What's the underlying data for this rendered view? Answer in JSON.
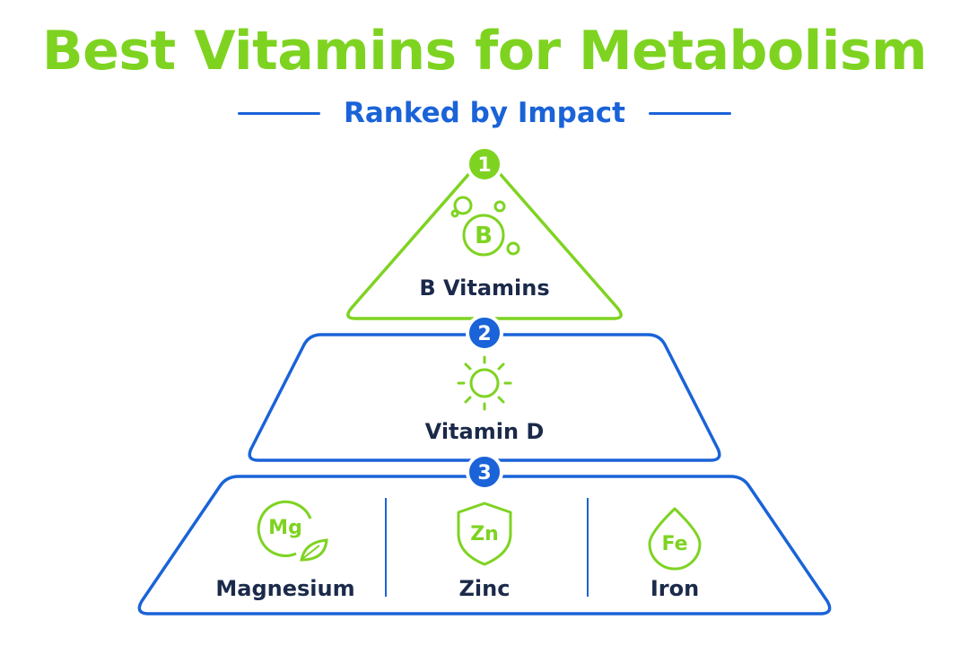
{
  "title": "Best Vitamins for Metabolism",
  "subtitle": "Ranked by Impact",
  "colors": {
    "green": "#7ed321",
    "blue": "#1a63d8",
    "navy": "#1b2a4a",
    "white": "#ffffff"
  },
  "tiers": [
    {
      "rank": "1",
      "items": [
        {
          "label": "B Vitamins",
          "icon": "b-vitamin-bubbles-icon",
          "glyph": "B"
        }
      ]
    },
    {
      "rank": "2",
      "items": [
        {
          "label": "Vitamin D",
          "icon": "sun-icon",
          "glyph": ""
        }
      ]
    },
    {
      "rank": "3",
      "items": [
        {
          "label": "Magnesium",
          "icon": "magnesium-leaf-icon",
          "glyph": "Mg"
        },
        {
          "label": "Zinc",
          "icon": "zinc-shield-icon",
          "glyph": "Zn"
        },
        {
          "label": "Iron",
          "icon": "iron-drop-icon",
          "glyph": "Fe"
        }
      ]
    }
  ]
}
